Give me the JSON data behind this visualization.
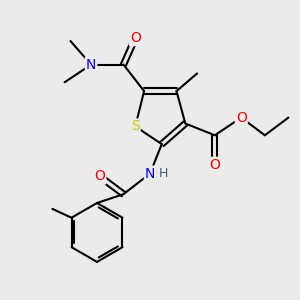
{
  "bg_color": "#ebebeb",
  "atom_colors": {
    "S": "#cccc00",
    "N": "#0000ff",
    "O": "#ff0000",
    "C": "#000000",
    "H": "#336666"
  },
  "bond_color": "#000000",
  "bond_width": 1.5,
  "fig_size": [
    3.0,
    3.0
  ],
  "dpi": 100
}
